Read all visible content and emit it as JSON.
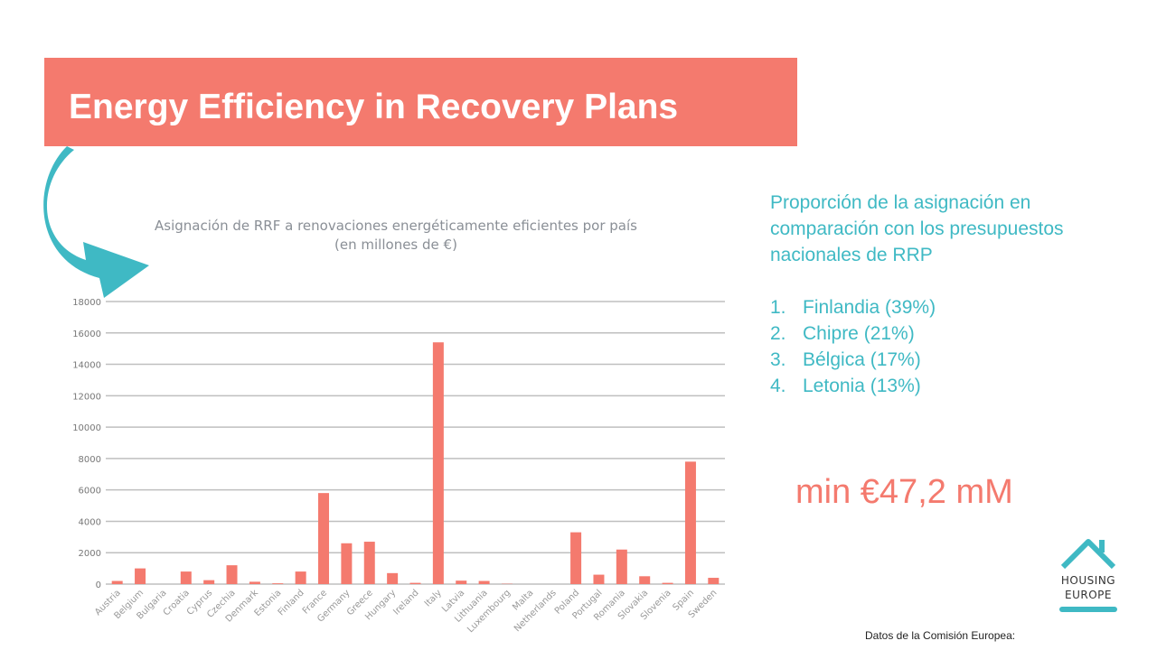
{
  "slide": {
    "title": "Energy Efficiency in Recovery Plans"
  },
  "side_panel": {
    "heading": "Proporción de la asignación en comparación con los presupuestos nacionales de RRP",
    "ranking": [
      {
        "num": "1.",
        "text": "Finlandia (39%)"
      },
      {
        "num": "2.",
        "text": "Chipre (21%)"
      },
      {
        "num": "3.",
        "text": "Bélgica (17%)"
      },
      {
        "num": "4.",
        "text": "Letonia (13%)"
      }
    ]
  },
  "highlight": "min €47,2 mM",
  "source": "Datos de la Comisión Europea:",
  "logo": {
    "line1": "HOUSING",
    "line2": "EUROPE"
  },
  "colors": {
    "bar": "#f47a6e",
    "banner": "#f47a6e",
    "accent_teal": "#3fb9c4",
    "grid": "#bfbfbf"
  },
  "icons": {
    "arrow": "curved-arrow-icon",
    "logo": "house-roof-icon"
  },
  "chart_data": {
    "type": "bar",
    "title": "Asignación de RRF a renovaciones energéticamente eficientes por país",
    "subtitle": "(en millones de €)",
    "categories": [
      "Austria",
      "Belgium",
      "Bulgaria",
      "Croatia",
      "Cyprus",
      "Czechia",
      "Denmark",
      "Estonia",
      "Finland",
      "France",
      "Germany",
      "Greece",
      "Hungary",
      "Ireland",
      "Italy",
      "Latvia",
      "Lithuania",
      "Luxembourg",
      "Malta",
      "Netherlands",
      "Poland",
      "Portugal",
      "Romania",
      "Slovakia",
      "Slovenia",
      "Spain",
      "Sweden"
    ],
    "values": [
      200,
      1000,
      0,
      800,
      250,
      1200,
      150,
      50,
      800,
      5800,
      2600,
      2700,
      700,
      80,
      15400,
      220,
      200,
      20,
      0,
      0,
      3300,
      600,
      2200,
      500,
      80,
      7800,
      400
    ],
    "ylim": [
      0,
      18000
    ],
    "yticks": [
      "0",
      "2000",
      "4000",
      "6000",
      "8000",
      "10000",
      "12000",
      "14000",
      "16000",
      "18000"
    ],
    "grid": true,
    "legend": "none"
  }
}
